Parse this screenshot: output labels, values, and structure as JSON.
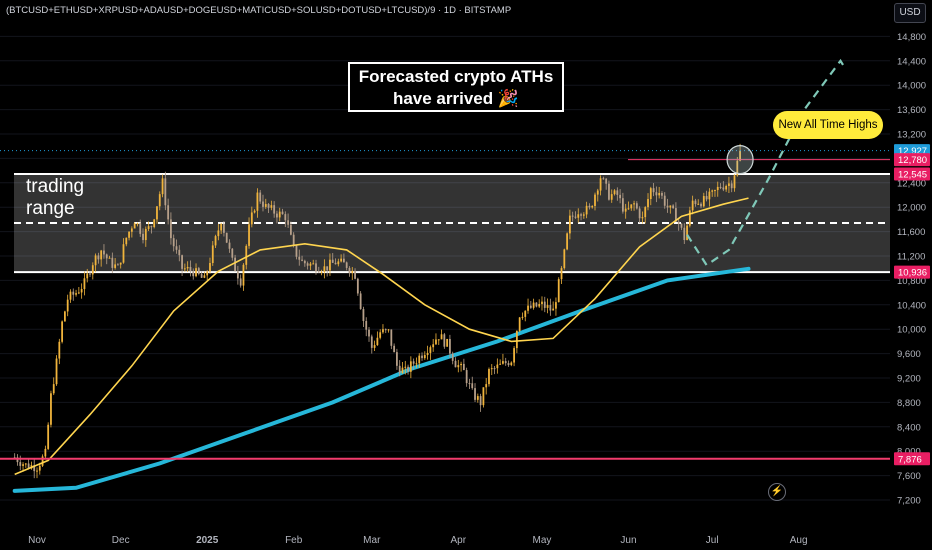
{
  "header": {
    "symbol_title": "(BTCUSD+ETHUSD+XRPUSD+ADAUSD+DOGEUSD+MATICUSD+SOLUSD+DOTUSD+LTCUSD)/9 · 1D · BITSTAMP",
    "currency_button": "USD"
  },
  "annotations": {
    "headline_line1": "Forecasted crypto ATHs",
    "headline_line2": "have arrived 🎉",
    "ath_bubble": "New All Time Highs",
    "range_line1": "trading",
    "range_line2": "range",
    "flash_icon": "lightning-icon"
  },
  "colors": {
    "background": "#000000",
    "candle_up": "#f0b43c",
    "candle_down": "#b7a08a",
    "ma_fast": "#ffd54f",
    "ma_slow": "#26b7d9",
    "support_line": "#f23c6e",
    "ath_line": "#f23c6e",
    "range_box": "#ffffff",
    "forecast": "#7fc8b8",
    "price_label_cyan": "#1e9bd8",
    "price_label_pink": "#e91e63"
  },
  "chart_data": {
    "type": "candlestick",
    "x_tick_labels": [
      "Nov",
      "Dec",
      "2025",
      "Feb",
      "Mar",
      "Apr",
      "May",
      "Jun",
      "Jul",
      "Aug"
    ],
    "y_tick_labels": [
      7200,
      7600,
      8000,
      8400,
      8800,
      9200,
      9600,
      10000,
      10400,
      10800,
      11200,
      11600,
      12000,
      12400,
      12800,
      13200,
      13600,
      14000,
      14400,
      14800
    ],
    "ylim": [
      7000,
      15100
    ],
    "price_labels": [
      {
        "value": 12927,
        "text": "12,927",
        "color": "#1e9bd8"
      },
      {
        "value": 12780,
        "text": "12,780",
        "color": "#e91e63"
      },
      {
        "value": 12545,
        "text": "12,545",
        "color": "#e91e63"
      },
      {
        "value": 10936,
        "text": "10,936",
        "color": "#e91e63"
      },
      {
        "value": 7876,
        "text": "7,876",
        "color": "#e91e63"
      }
    ],
    "levels": {
      "trading_range_top": 12545,
      "trading_range_mid": 11740,
      "trading_range_bottom": 10936,
      "support": 7876,
      "all_time_high": 12780,
      "last_price": 12927
    },
    "close_path": [
      [
        "2024-10-24",
        7900
      ],
      [
        "2024-10-28",
        7770
      ],
      [
        "2024-11-01",
        7750
      ],
      [
        "2024-11-04",
        7950
      ],
      [
        "2024-11-06",
        8900
      ],
      [
        "2024-11-08",
        9450
      ],
      [
        "2024-11-10",
        10100
      ],
      [
        "2024-11-12",
        10500
      ],
      [
        "2024-11-15",
        10600
      ],
      [
        "2024-11-18",
        10750
      ],
      [
        "2024-11-21",
        11100
      ],
      [
        "2024-11-24",
        11300
      ],
      [
        "2024-11-27",
        11100
      ],
      [
        "2024-11-30",
        11000
      ],
      [
        "2024-12-03",
        11500
      ],
      [
        "2024-12-06",
        11800
      ],
      [
        "2024-12-09",
        11550
      ],
      [
        "2024-12-12",
        11700
      ],
      [
        "2024-12-16",
        12400
      ],
      [
        "2024-12-19",
        11500
      ],
      [
        "2024-12-23",
        11000
      ],
      [
        "2024-12-27",
        10950
      ],
      [
        "2024-12-31",
        10800
      ],
      [
        "2025-01-03",
        11300
      ],
      [
        "2025-01-06",
        11800
      ],
      [
        "2025-01-10",
        11100
      ],
      [
        "2025-01-13",
        10800
      ],
      [
        "2025-01-16",
        11650
      ],
      [
        "2025-01-19",
        12200
      ],
      [
        "2025-01-22",
        12000
      ],
      [
        "2025-01-26",
        11900
      ],
      [
        "2025-01-29",
        11850
      ],
      [
        "2025-02-01",
        11300
      ],
      [
        "2025-02-04",
        11100
      ],
      [
        "2025-02-08",
        11050
      ],
      [
        "2025-02-12",
        11000
      ],
      [
        "2025-02-16",
        11100
      ],
      [
        "2025-02-20",
        11050
      ],
      [
        "2025-02-23",
        10900
      ],
      [
        "2025-02-26",
        10150
      ],
      [
        "2025-03-01",
        9700
      ],
      [
        "2025-03-04",
        9950
      ],
      [
        "2025-03-07",
        9950
      ],
      [
        "2025-03-10",
        9400
      ],
      [
        "2025-03-13",
        9300
      ],
      [
        "2025-03-17",
        9500
      ],
      [
        "2025-03-21",
        9700
      ],
      [
        "2025-03-25",
        9900
      ],
      [
        "2025-03-28",
        9750
      ],
      [
        "2025-03-31",
        9450
      ],
      [
        "2025-04-03",
        9300
      ],
      [
        "2025-04-06",
        8950
      ],
      [
        "2025-04-09",
        8800
      ],
      [
        "2025-04-12",
        9300
      ],
      [
        "2025-04-16",
        9400
      ],
      [
        "2025-04-20",
        9500
      ],
      [
        "2025-04-23",
        10250
      ],
      [
        "2025-04-27",
        10350
      ],
      [
        "2025-05-01",
        10400
      ],
      [
        "2025-05-05",
        10300
      ],
      [
        "2025-05-08",
        10950
      ],
      [
        "2025-05-11",
        11800
      ],
      [
        "2025-05-14",
        11950
      ],
      [
        "2025-05-18",
        11950
      ],
      [
        "2025-05-22",
        12500
      ],
      [
        "2025-05-25",
        12200
      ],
      [
        "2025-05-28",
        12200
      ],
      [
        "2025-05-31",
        11900
      ],
      [
        "2025-06-03",
        12050
      ],
      [
        "2025-06-06",
        11800
      ],
      [
        "2025-06-09",
        12300
      ],
      [
        "2025-06-12",
        12250
      ],
      [
        "2025-06-15",
        12000
      ],
      [
        "2025-06-18",
        11850
      ],
      [
        "2025-06-21",
        11500
      ],
      [
        "2025-06-24",
        12100
      ],
      [
        "2025-06-28",
        12100
      ],
      [
        "2025-07-01",
        12200
      ],
      [
        "2025-07-04",
        12350
      ],
      [
        "2025-07-08",
        12400
      ],
      [
        "2025-07-11",
        12900
      ]
    ],
    "ma_fast": [
      [
        "2024-10-24",
        7620
      ],
      [
        "2024-11-05",
        7850
      ],
      [
        "2024-11-20",
        8600
      ],
      [
        "2024-12-05",
        9400
      ],
      [
        "2024-12-20",
        10300
      ],
      [
        "2025-01-05",
        10950
      ],
      [
        "2025-01-20",
        11300
      ],
      [
        "2025-02-05",
        11400
      ],
      [
        "2025-02-20",
        11300
      ],
      [
        "2025-03-05",
        10900
      ],
      [
        "2025-03-20",
        10400
      ],
      [
        "2025-04-05",
        10000
      ],
      [
        "2025-04-20",
        9800
      ],
      [
        "2025-05-05",
        9850
      ],
      [
        "2025-05-20",
        10500
      ],
      [
        "2025-06-05",
        11350
      ],
      [
        "2025-06-20",
        11850
      ],
      [
        "2025-07-05",
        12050
      ],
      [
        "2025-07-14",
        12150
      ]
    ],
    "ma_slow": [
      [
        "2024-10-24",
        7350
      ],
      [
        "2024-11-15",
        7400
      ],
      [
        "2024-12-15",
        7800
      ],
      [
        "2025-01-15",
        8300
      ],
      [
        "2025-02-15",
        8800
      ],
      [
        "2025-03-15",
        9350
      ],
      [
        "2025-04-15",
        9800
      ],
      [
        "2025-05-15",
        10300
      ],
      [
        "2025-06-15",
        10800
      ],
      [
        "2025-07-14",
        10990
      ]
    ],
    "forecast_path": [
      [
        "2025-06-22",
        11550
      ],
      [
        "2025-06-29",
        11050
      ],
      [
        "2025-07-07",
        11300
      ],
      [
        "2025-07-21",
        12450
      ],
      [
        "2025-08-03",
        13600
      ],
      [
        "2025-08-16",
        14400
      ],
      [
        "2025-08-18",
        14250
      ]
    ]
  }
}
